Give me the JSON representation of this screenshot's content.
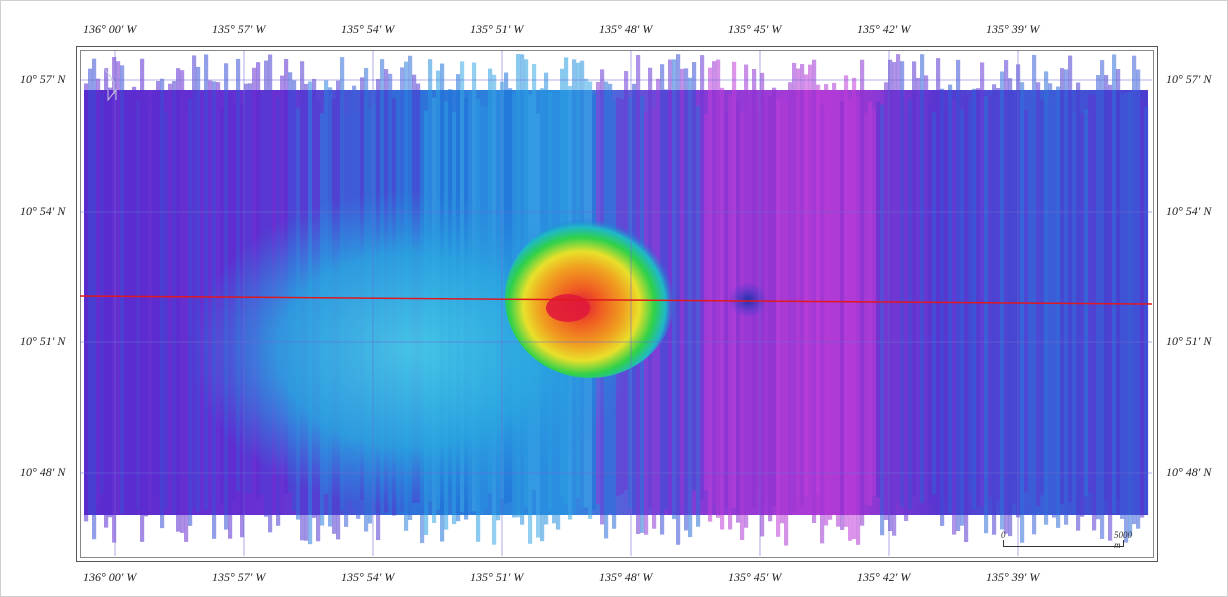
{
  "map": {
    "longitude_labels": [
      "136° 00′ W",
      "135° 57′ W",
      "135° 54′ W",
      "135° 51′ W",
      "135° 48′ W",
      "135° 45′ W",
      "135° 42′ W",
      "135° 39′ W"
    ],
    "latitude_labels": [
      "10° 57′ N",
      "10° 54′ N",
      "10° 51′ N",
      "10° 48′ N"
    ],
    "scale_bar": {
      "start": "0",
      "end": "5000 m"
    },
    "colors": {
      "deep": "#3a1fb0",
      "deep_violet": "#7a2bd0",
      "magenta": "#b23ad6",
      "mid": "#1e73d8",
      "shallow_cyan": "#36c9e6",
      "green": "#2fd14a",
      "yellow": "#e9e02a",
      "orange": "#f07a1a",
      "summit_red": "#e01a3a",
      "profile_line": "#e0181f",
      "graticule": "#6b6bd6"
    }
  }
}
